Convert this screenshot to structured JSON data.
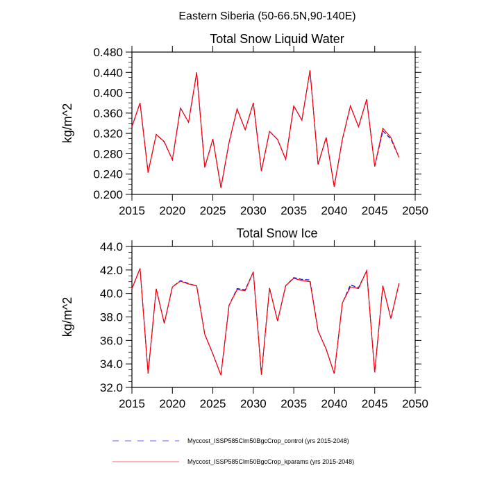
{
  "figure_title": "Eastern Siberia (50-66.5N,90-140E)",
  "colors": {
    "control": "#0000ff",
    "kparams": "#ff0000"
  },
  "legend": [
    {
      "label": "Myccost_ISSP585Clm50BgcCrop_control (yrs 2015-2048)",
      "style": "dashed",
      "color": "#0000ff"
    },
    {
      "label": "Myccost_ISSP585Clm50BgcCrop_kparams (yrs 2015-2048)",
      "style": "solid",
      "color": "#ff0000"
    }
  ],
  "chart_data": [
    {
      "type": "line",
      "title": "Total Snow Liquid Water",
      "xlabel": "",
      "ylabel": "kg/m^2",
      "xlim": [
        2015,
        2050
      ],
      "ylim": [
        0.2,
        0.48
      ],
      "xticks": [
        "2015",
        "2020",
        "2025",
        "2030",
        "2035",
        "2040",
        "2045",
        "2050"
      ],
      "yticks": [
        "0.200",
        "0.240",
        "0.280",
        "0.320",
        "0.360",
        "0.400",
        "0.440",
        "0.480"
      ],
      "x": [
        2015,
        2016,
        2017,
        2018,
        2019,
        2020,
        2021,
        2022,
        2023,
        2024,
        2025,
        2026,
        2027,
        2028,
        2029,
        2030,
        2031,
        2032,
        2033,
        2034,
        2035,
        2036,
        2037,
        2038,
        2039,
        2040,
        2041,
        2042,
        2043,
        2044,
        2045,
        2046,
        2047,
        2048
      ],
      "series": [
        {
          "name": "control",
          "values": [
            0.333,
            0.38,
            0.243,
            0.318,
            0.303,
            0.268,
            0.37,
            0.342,
            0.44,
            0.253,
            0.309,
            0.213,
            0.302,
            0.368,
            0.327,
            0.38,
            0.246,
            0.324,
            0.308,
            0.269,
            0.374,
            0.346,
            0.444,
            0.259,
            0.312,
            0.215,
            0.308,
            0.374,
            0.333,
            0.387,
            0.255,
            0.325,
            0.309,
            0.273
          ]
        },
        {
          "name": "kparams",
          "values": [
            0.333,
            0.38,
            0.243,
            0.318,
            0.304,
            0.268,
            0.37,
            0.342,
            0.44,
            0.253,
            0.309,
            0.213,
            0.302,
            0.368,
            0.327,
            0.38,
            0.246,
            0.324,
            0.308,
            0.269,
            0.374,
            0.346,
            0.444,
            0.259,
            0.312,
            0.215,
            0.308,
            0.374,
            0.333,
            0.387,
            0.255,
            0.33,
            0.312,
            0.273
          ]
        }
      ]
    },
    {
      "type": "line",
      "title": "Total Snow Ice",
      "xlabel": "",
      "ylabel": "kg/m^2",
      "xlim": [
        2015,
        2050
      ],
      "ylim": [
        32.0,
        44.0
      ],
      "xticks": [
        "2015",
        "2020",
        "2025",
        "2030",
        "2035",
        "2040",
        "2045",
        "2050"
      ],
      "yticks": [
        "32.0",
        "34.0",
        "36.0",
        "38.0",
        "40.0",
        "42.0",
        "44.0"
      ],
      "x": [
        2015,
        2016,
        2017,
        2018,
        2019,
        2020,
        2021,
        2022,
        2023,
        2024,
        2025,
        2026,
        2027,
        2028,
        2029,
        2030,
        2031,
        2032,
        2033,
        2034,
        2035,
        2036,
        2037,
        2038,
        2039,
        2040,
        2041,
        2042,
        2043,
        2044,
        2045,
        2046,
        2047,
        2048
      ],
      "series": [
        {
          "name": "control",
          "values": [
            40.4,
            42.13,
            33.18,
            40.4,
            37.45,
            40.56,
            41.09,
            40.85,
            40.64,
            36.53,
            34.85,
            33.04,
            38.98,
            40.42,
            40.32,
            41.84,
            33.08,
            40.46,
            37.65,
            40.66,
            41.35,
            41.2,
            41.15,
            36.82,
            35.25,
            33.18,
            39.18,
            40.72,
            40.5,
            41.93,
            33.28,
            40.66,
            37.86,
            40.85
          ]
        },
        {
          "name": "kparams",
          "values": [
            40.4,
            42.13,
            33.18,
            40.4,
            37.45,
            40.56,
            41.05,
            40.81,
            40.64,
            36.53,
            34.85,
            33.04,
            38.98,
            40.32,
            40.24,
            41.84,
            33.08,
            40.46,
            37.65,
            40.66,
            41.29,
            41.1,
            41.01,
            36.82,
            35.25,
            33.18,
            39.18,
            40.56,
            40.42,
            41.93,
            33.28,
            40.66,
            37.86,
            40.85
          ]
        }
      ]
    }
  ]
}
